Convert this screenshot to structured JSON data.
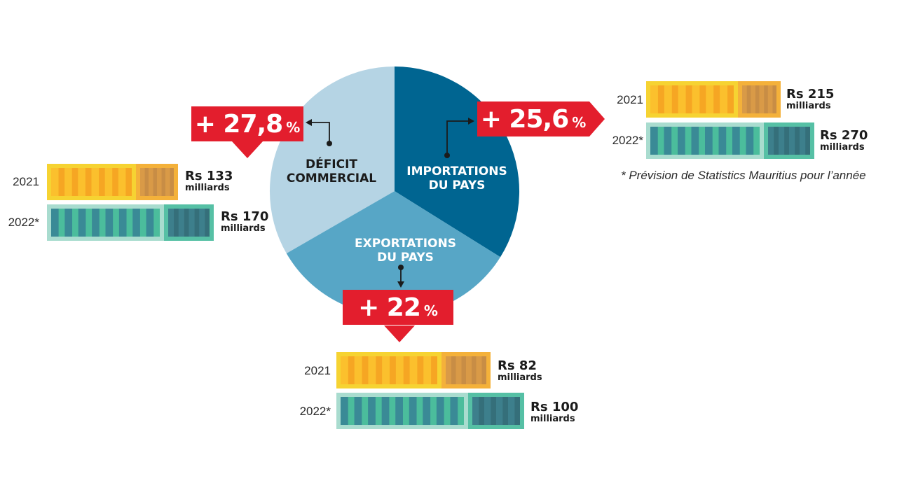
{
  "chart_data": {
    "type": "pie",
    "slices": [
      {
        "label": "DÉFICIT COMMERCIAL",
        "color": "#b5d4e4"
      },
      {
        "label": "IMPORTATIONS DU PAYS",
        "color": "#006591"
      },
      {
        "label": "EXPORTATIONS DU PAYS",
        "color": "#57a6c6"
      }
    ],
    "groups": [
      {
        "key": "deficit",
        "change": "+ 27,8",
        "unit": "%",
        "rows": [
          {
            "year": "2021",
            "amount": "Rs 133",
            "unit": "milliards"
          },
          {
            "year": "2022*",
            "amount": "Rs 170",
            "unit": "milliards"
          }
        ]
      },
      {
        "key": "imports",
        "change": "+ 25,6",
        "unit": "%",
        "rows": [
          {
            "year": "2021",
            "amount": "Rs 215",
            "unit": "milliards"
          },
          {
            "year": "2022*",
            "amount": "Rs 270",
            "unit": "milliards"
          }
        ]
      },
      {
        "key": "exports",
        "change": "+ 22",
        "unit": "%",
        "rows": [
          {
            "year": "2021",
            "amount": "Rs 82",
            "unit": "milliards"
          },
          {
            "year": "2022*",
            "amount": "Rs 100",
            "unit": "milliards"
          }
        ]
      }
    ],
    "footnote": "* Prévision de Statistics Mauritius pour l’année"
  },
  "colors": {
    "red": "#e31e2d",
    "yellow": "#f6d332",
    "orange": "#f6a623",
    "teal": "#4bbd9c",
    "teal_dark": "#3a8a96"
  }
}
